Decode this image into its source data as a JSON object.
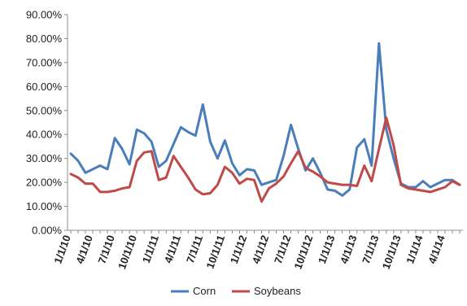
{
  "chart_data": {
    "type": "line",
    "title": "",
    "xlabel": "",
    "ylabel": "",
    "ylim": [
      0,
      90
    ],
    "y_ticks": [
      "0.00%",
      "10.00%",
      "20.00%",
      "30.00%",
      "40.00%",
      "50.00%",
      "60.00%",
      "70.00%",
      "80.00%",
      "90.00%"
    ],
    "x_tick_labels": [
      "1/1/10",
      "4/1/10",
      "7/1/10",
      "10/1/10",
      "1/1/11",
      "4/1/11",
      "7/1/11",
      "10/1/11",
      "1/1/12",
      "4/1/12",
      "7/1/12",
      "10/1/12",
      "1/1/13",
      "4/1/13",
      "7/1/13",
      "10/1/13",
      "1/1/14",
      "4/1/14"
    ],
    "x_tick_months": [
      0,
      3,
      6,
      9,
      12,
      15,
      18,
      21,
      24,
      27,
      30,
      33,
      36,
      39,
      42,
      45,
      48,
      51
    ],
    "x_months": [
      0,
      1,
      2,
      3,
      4,
      5,
      6,
      7,
      8,
      9,
      10,
      11,
      12,
      13,
      14,
      15,
      16,
      17,
      18,
      19,
      20,
      21,
      22,
      23,
      24,
      25,
      26,
      27,
      28,
      29,
      30,
      31,
      32,
      33,
      34,
      35,
      36,
      37,
      38,
      39,
      40,
      41,
      42,
      43,
      44,
      45,
      46,
      47,
      48,
      49,
      50,
      51,
      52,
      53
    ],
    "x_range": [
      0,
      53
    ],
    "grid": false,
    "legend_position": "bottom",
    "series": [
      {
        "name": "Corn",
        "color": "#4a7ebb",
        "values": [
          32,
          29,
          24,
          25.5,
          27,
          25.5,
          38.5,
          34,
          27.5,
          42,
          40.5,
          37,
          26.5,
          29,
          36,
          43,
          41,
          39.5,
          52.5,
          37,
          30,
          37.5,
          28,
          23,
          25.5,
          25,
          19,
          20,
          21,
          31,
          44,
          34,
          25,
          30,
          24,
          17,
          16.5,
          14.5,
          17,
          34.5,
          38,
          27,
          78,
          42,
          30,
          19.5,
          18,
          18,
          20.5,
          18,
          19.5,
          21,
          21,
          19
        ]
      },
      {
        "name": "Soybeans",
        "color": "#be4b48",
        "values": [
          23.5,
          22,
          19.5,
          19.5,
          16,
          16,
          16.5,
          17.5,
          18,
          29,
          32.5,
          33,
          21,
          22,
          31,
          26.5,
          22,
          17,
          15,
          15.5,
          19,
          26.5,
          24,
          19.5,
          21.5,
          21,
          12,
          17.5,
          19.5,
          22.5,
          28,
          33,
          26,
          24.5,
          22.5,
          20,
          19.5,
          19,
          19,
          18.5,
          27,
          20.5,
          34,
          47,
          35.5,
          19,
          17.5,
          17,
          16.5,
          16,
          17,
          18,
          20.5,
          19
        ]
      }
    ]
  }
}
